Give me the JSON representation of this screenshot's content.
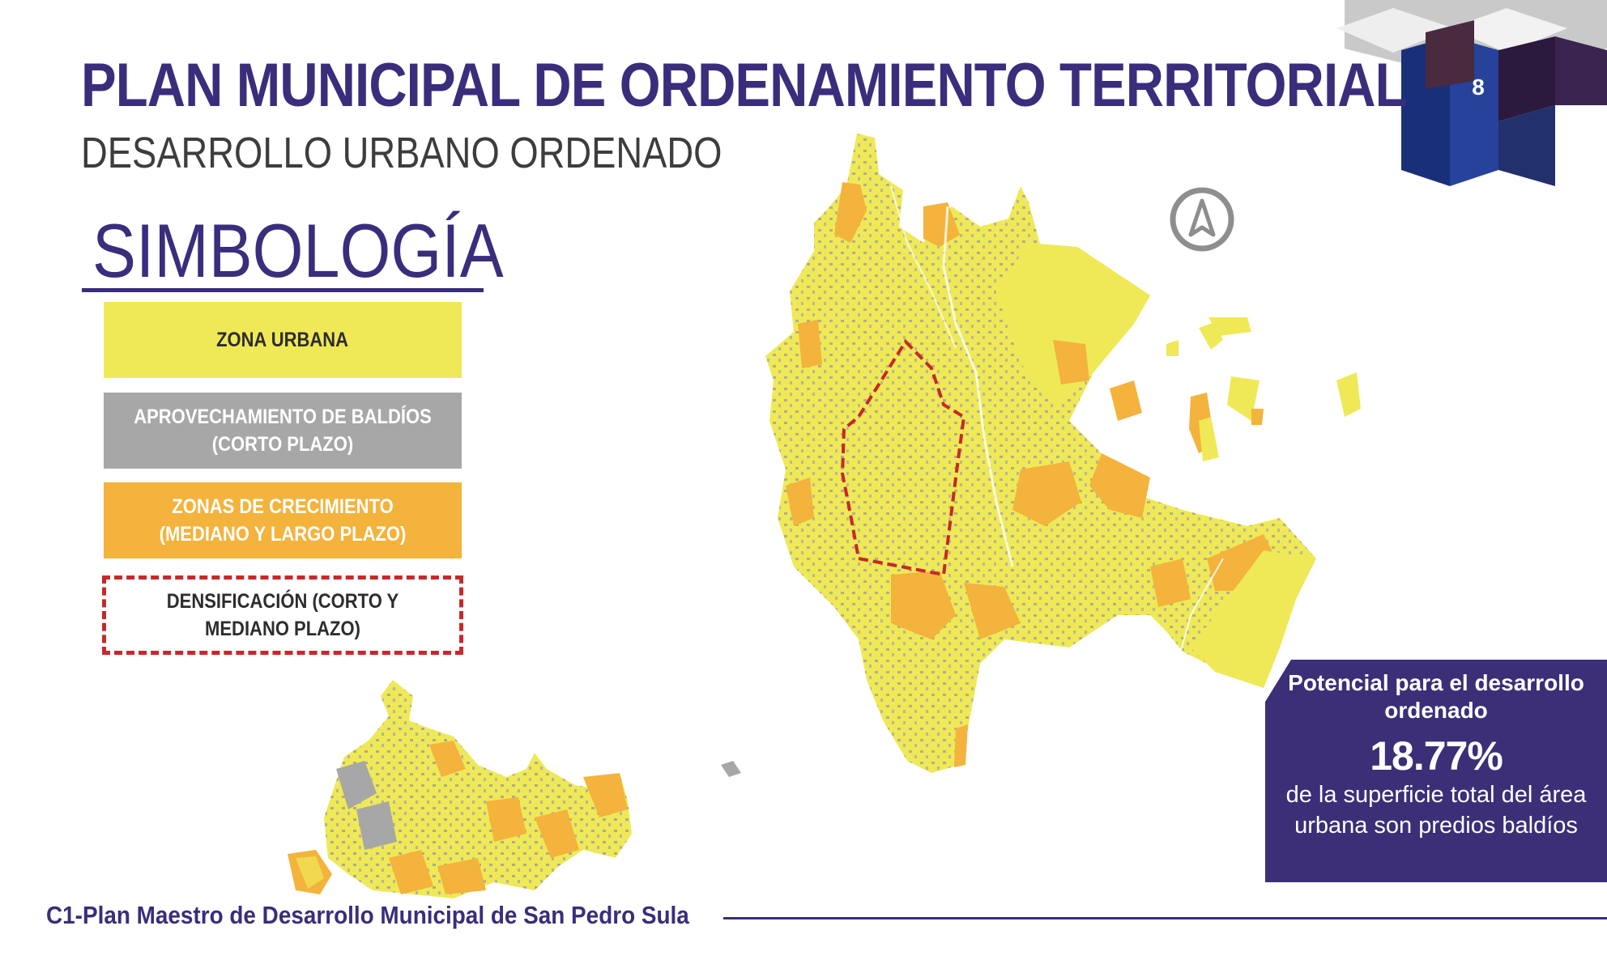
{
  "header": {
    "title": "PLAN MUNICIPAL DE ORDENAMIENTO TERRITORIAL",
    "subtitle": "DESARROLLO URBANO ORDENADO",
    "page_number": "8"
  },
  "legend": {
    "heading": "SIMBOLOGÍA",
    "items": [
      {
        "label": "ZONA URBANA",
        "color": "#efe957"
      },
      {
        "label": "APROVECHAMIENTO DE BALDÍOS (CORTO PLAZO)",
        "color": "#a7a7a7"
      },
      {
        "label": "ZONAS DE CRECIMIENTO (MEDIANO Y LARGO PLAZO)",
        "color": "#f3b33d"
      },
      {
        "label": "DENSIFICACIÓN (CORTO Y MEDIANO PLAZO)",
        "color": "#c8282a"
      }
    ]
  },
  "map": {
    "north_arrow_icon": "north-arrow-icon",
    "colors": {
      "urban": "#efe957",
      "vacant": "#a7a7a7",
      "growth": "#f3b33d",
      "densification": "#c8282a"
    }
  },
  "info_box": {
    "heading": "Potencial para el desarrollo ordenado",
    "value": "18.77%",
    "description": "de la superficie total del área urbana son predios baldíos"
  },
  "footer": {
    "text": "C1-Plan Maestro de Desarrollo Municipal de San Pedro Sula"
  },
  "theme": {
    "primary": "#3b2d7c",
    "info_bg": "#3c2f78"
  }
}
